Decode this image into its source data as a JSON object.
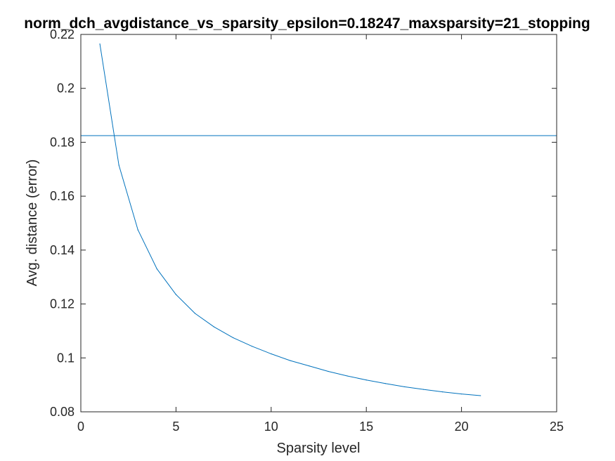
{
  "chart_data": {
    "type": "line",
    "title": "norm_dch_avgdistance_vs_sparsity_epsilon=0.18247_maxsparsity=21_stopping",
    "xlabel": "Sparsity level",
    "ylabel": "Avg. distance (error)",
    "xlim": [
      0,
      25
    ],
    "ylim": [
      0.08,
      0.22
    ],
    "xticks": [
      0,
      5,
      10,
      15,
      20,
      25
    ],
    "xtick_labels": [
      "0",
      "5",
      "10",
      "15",
      "20",
      "25"
    ],
    "yticks": [
      0.08,
      0.1,
      0.12,
      0.14,
      0.16,
      0.18,
      0.2,
      0.22
    ],
    "ytick_labels": [
      "0.08",
      "0.1",
      "0.12",
      "0.14",
      "0.16",
      "0.18",
      "0.2",
      "0.22"
    ],
    "grid": false,
    "series": [
      {
        "x": [
          1,
          2,
          3,
          4,
          5,
          6,
          7,
          8,
          9,
          10,
          11,
          12,
          13,
          14,
          15,
          16,
          17,
          18,
          19,
          20,
          21
        ],
        "values": [
          0.2165,
          0.1715,
          0.1475,
          0.133,
          0.1235,
          0.1165,
          0.1115,
          0.1075,
          0.1043,
          0.1015,
          0.099,
          0.097,
          0.095,
          0.0933,
          0.0918,
          0.0905,
          0.0893,
          0.0883,
          0.0874,
          0.0866,
          0.086
        ],
        "color": "#0072BD"
      }
    ],
    "reference_line": {
      "y": 0.18247,
      "color": "#0072BD"
    }
  }
}
